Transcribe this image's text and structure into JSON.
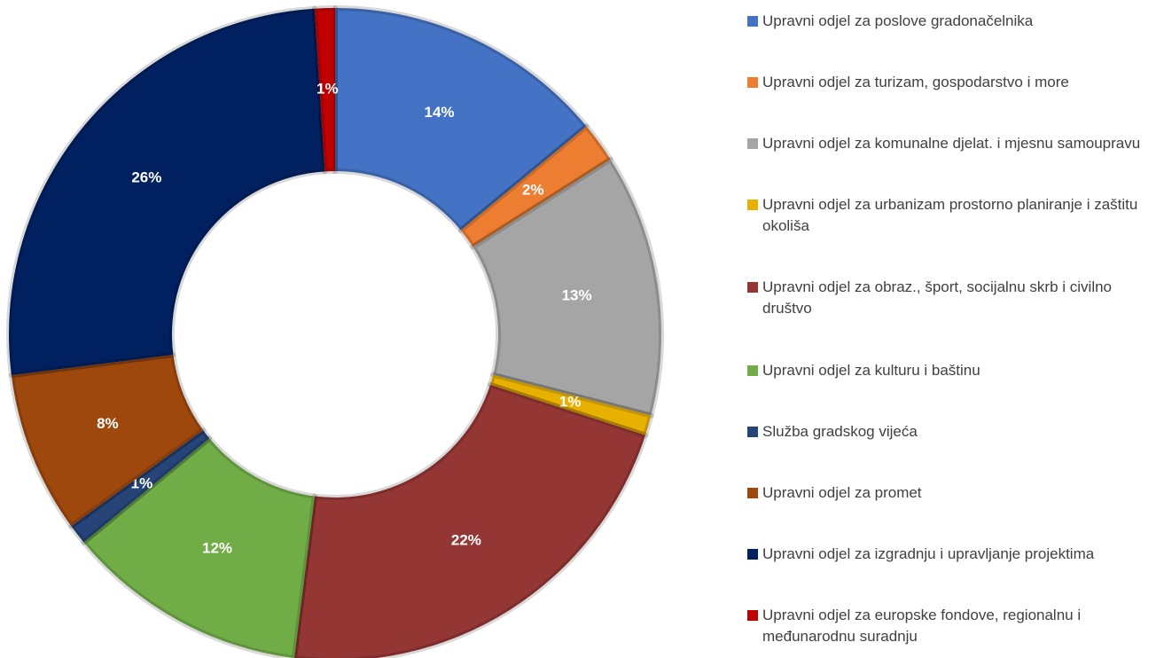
{
  "chart_data": {
    "type": "pie",
    "categories": [
      "Upravni odjel za poslove gradonačelnika",
      "Upravni odjel za turizam, gospodarstvo i more",
      "Upravni odjel za komunalne djelat. i mjesnu samoupravu",
      "Upravni odjel za urbanizam prostorno planiranje  i zaštitu okoliša",
      "Upravni odjel za obraz., šport, socijalnu skrb i civilno društvo",
      "Upravni odjel za kulturu i baštinu",
      "Služba gradskog vijeća",
      "Upravni odjel za promet",
      "Upravni odjel za izgradnju i upravljanje projektima",
      "Upravni odjel za europske fondove, regionalnu i međunarodnu suradnju"
    ],
    "values": [
      14,
      2,
      13,
      1,
      22,
      12,
      1,
      8,
      26,
      1
    ],
    "value_labels": [
      "14%",
      "2%",
      "13%",
      "1%",
      "22%",
      "12%",
      "1%",
      "8%",
      "26%",
      "1%"
    ],
    "colors": [
      "#4472c4",
      "#ed7d31",
      "#a5a5a5",
      "#e8b000",
      "#943634",
      "#70ad47",
      "#264478",
      "#9e480e",
      "#002060",
      "#c00000"
    ],
    "donut": true,
    "legend": "right"
  }
}
